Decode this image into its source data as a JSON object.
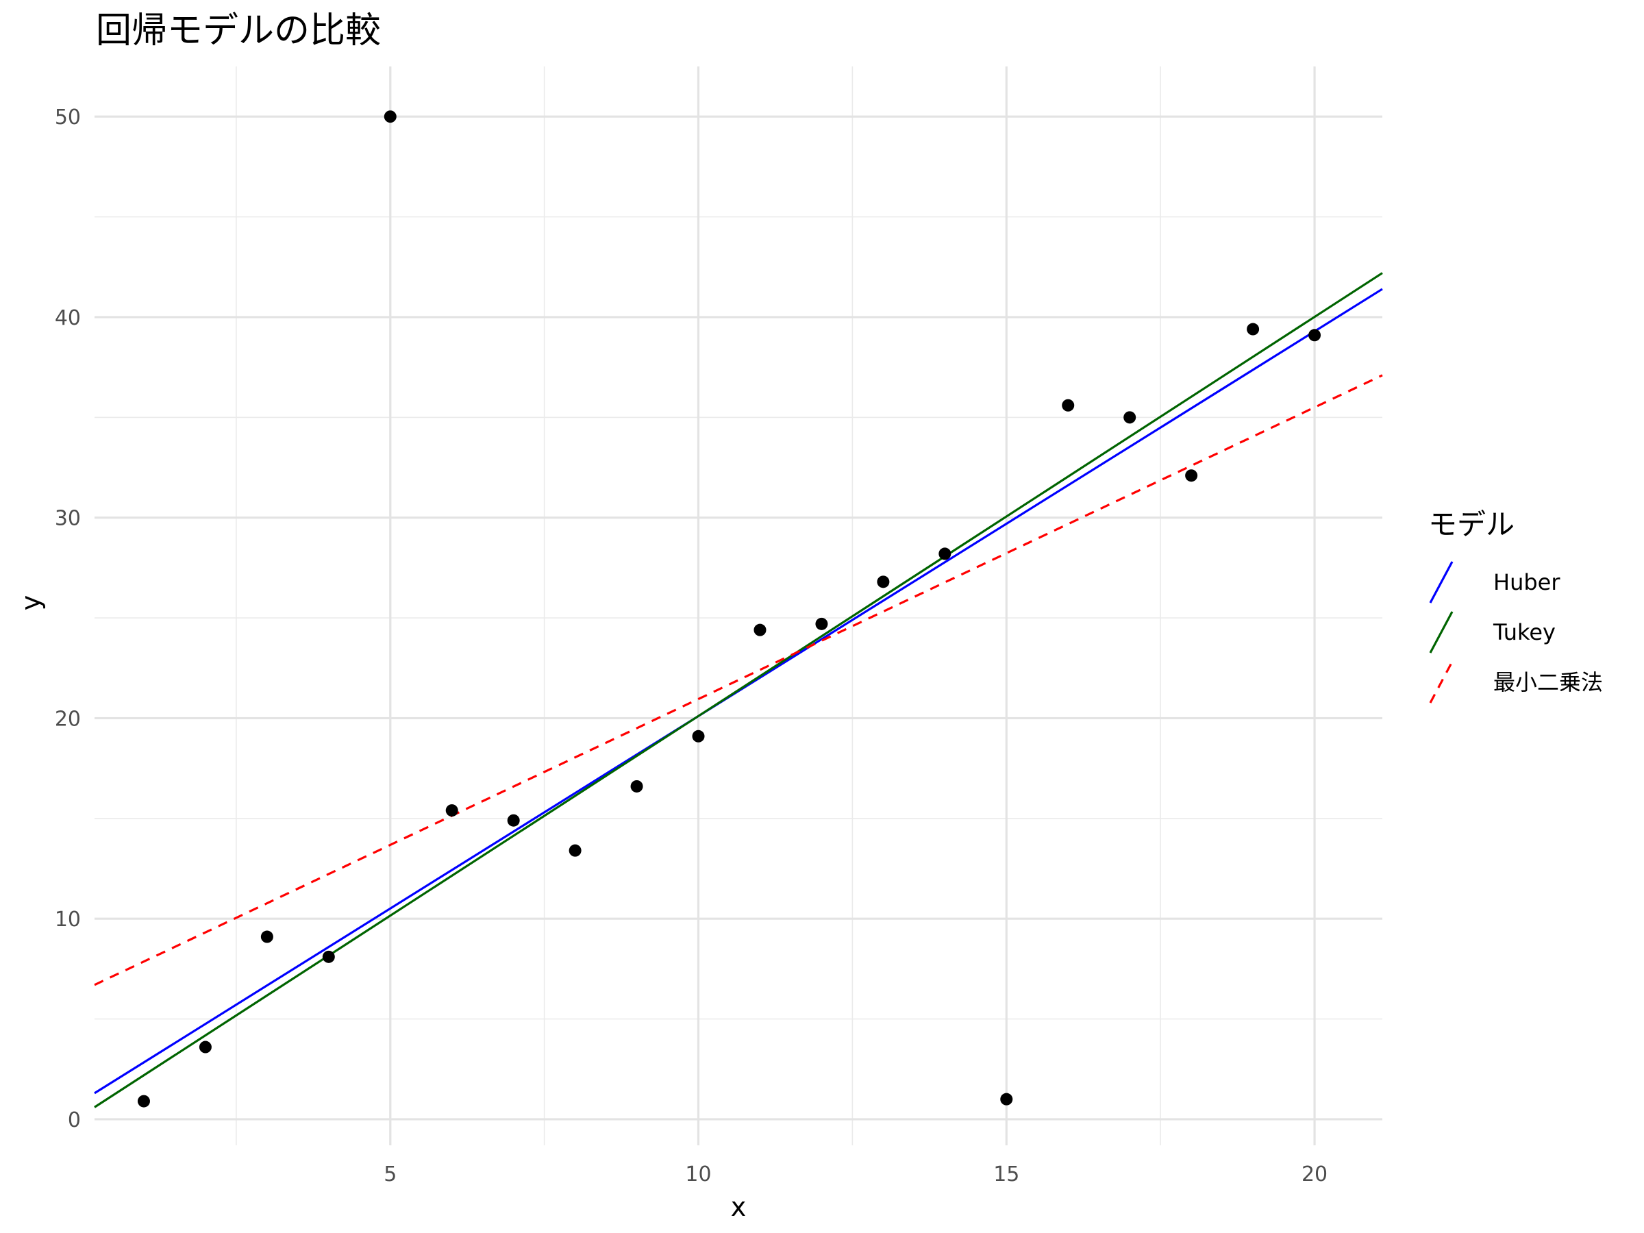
{
  "chart_data": {
    "type": "scatter",
    "title": "回帰モデルの比較",
    "xlabel": "x",
    "ylabel": "y",
    "xlim": [
      0.2,
      21.1
    ],
    "ylim": [
      -1.3,
      52.5
    ],
    "x_ticks": [
      5,
      10,
      15,
      20
    ],
    "x_tick_labels": [
      "5",
      "10",
      "15",
      "20"
    ],
    "y_ticks": [
      0,
      10,
      20,
      30,
      40,
      50
    ],
    "y_tick_labels": [
      "0",
      "10",
      "20",
      "30",
      "40",
      "50"
    ],
    "x_minor_ticks": [
      2.5,
      7.5,
      12.5,
      17.5
    ],
    "y_minor_ticks": [
      5,
      15,
      25,
      35,
      45
    ],
    "grid": true,
    "legend_position": "right",
    "points": {
      "color": "#000000",
      "x": [
        1,
        2,
        3,
        4,
        5,
        6,
        7,
        8,
        9,
        10,
        11,
        12,
        13,
        14,
        15,
        16,
        17,
        18,
        19,
        20
      ],
      "y": [
        0.9,
        3.6,
        9.1,
        8.1,
        50.0,
        15.4,
        14.9,
        13.4,
        16.6,
        19.1,
        24.4,
        24.7,
        26.8,
        28.2,
        1.0,
        35.6,
        35.0,
        32.1,
        39.4,
        39.1
      ]
    },
    "series": [
      {
        "name": "Huber",
        "type": "line",
        "color": "#0000ff",
        "dash": "solid",
        "x": [
          0.2,
          21.1
        ],
        "y": [
          1.3,
          41.4
        ]
      },
      {
        "name": "Tukey",
        "type": "line",
        "color": "#006400",
        "dash": "solid",
        "x": [
          0.2,
          21.1
        ],
        "y": [
          0.6,
          42.2
        ]
      },
      {
        "name": "最小二乗法",
        "type": "line",
        "color": "#ff0000",
        "dash": "dashed",
        "x": [
          0.2,
          21.1
        ],
        "y": [
          6.7,
          37.1
        ]
      }
    ],
    "legend": {
      "title": "モデル",
      "entries": [
        "Huber",
        "Tukey",
        "最小二乗法"
      ]
    }
  }
}
